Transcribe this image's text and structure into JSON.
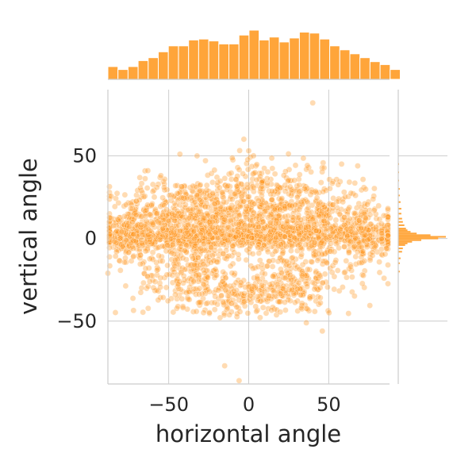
{
  "chart_data": {
    "type": "scatter",
    "subtype": "jointplot",
    "xlabel": "horizontal angle",
    "ylabel": "vertical angle",
    "xlim": [
      -88,
      88
    ],
    "ylim": [
      -88,
      90
    ],
    "xticks": [
      -50,
      0,
      50
    ],
    "yticks": [
      -50,
      0,
      50
    ],
    "xtick_labels": [
      "−50",
      "0",
      "50"
    ],
    "ytick_labels": [
      "−50",
      "0",
      "50"
    ],
    "grid": true,
    "point_color": "#ff9922",
    "hist_color": "#ffa53a",
    "top_histogram": {
      "bin_start": -88,
      "bin_width": 6.3,
      "counts": [
        13,
        10,
        13,
        19,
        22,
        28,
        34,
        34,
        40,
        41,
        39,
        36,
        36,
        45,
        50,
        40,
        43,
        38,
        42,
        48,
        47,
        41,
        34,
        30,
        26,
        22,
        18,
        15,
        10
      ]
    },
    "right_histogram": {
      "bins": [
        {
          "y": -20,
          "count": 2
        },
        {
          "y": -15,
          "count": 2
        },
        {
          "y": -12,
          "count": 3
        },
        {
          "y": -8,
          "count": 5
        },
        {
          "y": -6,
          "count": 6
        },
        {
          "y": -4,
          "count": 9
        },
        {
          "y": -3,
          "count": 12
        },
        {
          "y": -2,
          "count": 18
        },
        {
          "y": -1,
          "count": 30
        },
        {
          "y": 0,
          "count": 52
        },
        {
          "y": 1,
          "count": 62
        },
        {
          "y": 2,
          "count": 42
        },
        {
          "y": 3,
          "count": 24
        },
        {
          "y": 4,
          "count": 16
        },
        {
          "y": 5,
          "count": 12
        },
        {
          "y": 6,
          "count": 10
        },
        {
          "y": 8,
          "count": 8
        },
        {
          "y": 10,
          "count": 6
        },
        {
          "y": 12,
          "count": 5
        },
        {
          "y": 15,
          "count": 4
        },
        {
          "y": 18,
          "count": 4
        },
        {
          "y": 22,
          "count": 3
        },
        {
          "y": 26,
          "count": 2
        },
        {
          "y": 30,
          "count": 2
        },
        {
          "y": 35,
          "count": 1
        },
        {
          "y": 40,
          "count": 1
        },
        {
          "y": 45,
          "count": 1
        }
      ]
    },
    "outliers": [
      {
        "x": 40,
        "y": 82
      },
      {
        "x": -3,
        "y": 60
      },
      {
        "x": 0,
        "y": 53
      },
      {
        "x": 3,
        "y": 50
      },
      {
        "x": -15,
        "y": -77
      },
      {
        "x": -6,
        "y": -86
      },
      {
        "x": 36,
        "y": -51
      },
      {
        "x": 46,
        "y": -56
      },
      {
        "x": -88,
        "y": -21
      },
      {
        "x": -63,
        "y": 41
      },
      {
        "x": -43,
        "y": 51
      },
      {
        "x": -27,
        "y": 47
      }
    ],
    "clusters": [
      {
        "cx": 0,
        "cy": 1,
        "sx": 52,
        "sy": 3.5,
        "n": 700
      },
      {
        "cx": -42,
        "cy": 12,
        "sx": 22,
        "sy": 12,
        "n": 560
      },
      {
        "cx": 32,
        "cy": 14,
        "sx": 24,
        "sy": 12,
        "n": 560
      },
      {
        "cx": 0,
        "cy": 24,
        "sx": 16,
        "sy": 14,
        "n": 220
      },
      {
        "cx": -35,
        "cy": -24,
        "sx": 18,
        "sy": 12,
        "n": 260
      },
      {
        "cx": 30,
        "cy": -26,
        "sx": 18,
        "sy": 11,
        "n": 240
      },
      {
        "cx": 0,
        "cy": -35,
        "sx": 20,
        "sy": 7,
        "n": 140
      },
      {
        "cx": -72,
        "cy": 2,
        "sx": 10,
        "sy": 8,
        "n": 180
      },
      {
        "cx": 74,
        "cy": 0,
        "sx": 10,
        "sy": 8,
        "n": 180
      }
    ]
  }
}
